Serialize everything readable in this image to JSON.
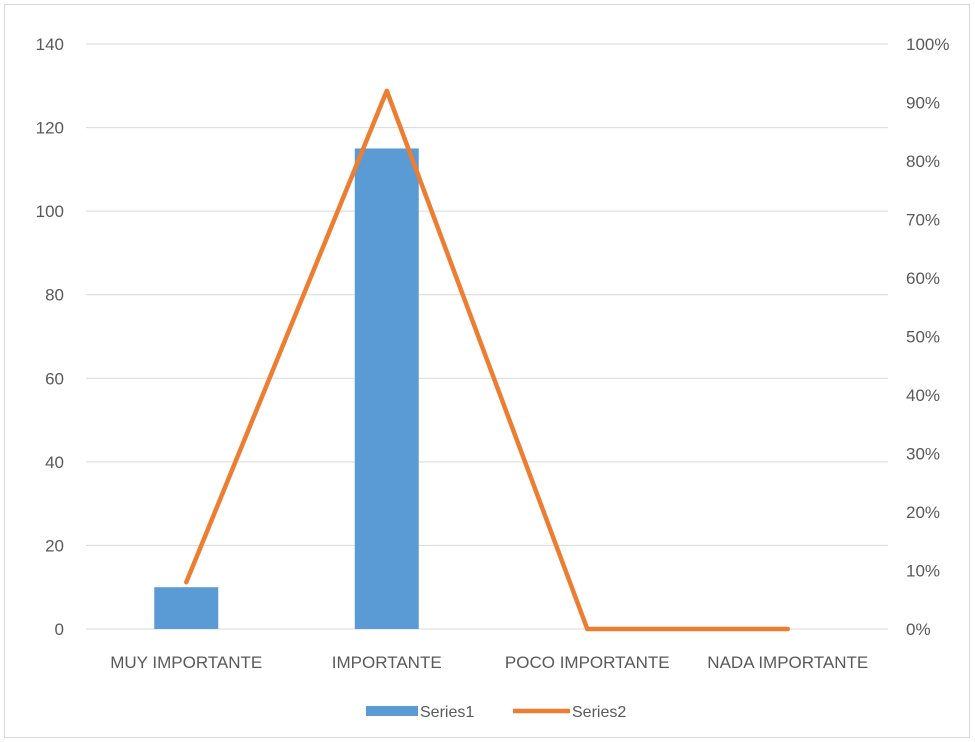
{
  "chart_data": {
    "type": "bar",
    "categories": [
      "MUY IMPORTANTE",
      "IMPORTANTE",
      "POCO IMPORTANTE",
      "NADA IMPORTANTE"
    ],
    "series": [
      {
        "name": "Series1",
        "type": "bar",
        "axis": "left",
        "color": "#5b9bd5",
        "values": [
          10,
          115,
          0,
          0
        ]
      },
      {
        "name": "Series2",
        "type": "line",
        "axis": "right",
        "color": "#ed7d31",
        "values": [
          0.08,
          0.92,
          0,
          0
        ]
      }
    ],
    "y_left": {
      "min": 0,
      "max": 140,
      "step": 20,
      "ticks": [
        "0",
        "20",
        "40",
        "60",
        "80",
        "100",
        "120",
        "140"
      ]
    },
    "y_right": {
      "min": 0,
      "max": 1,
      "step": 0.1,
      "ticks": [
        "0%",
        "10%",
        "20%",
        "30%",
        "40%",
        "50%",
        "60%",
        "70%",
        "80%",
        "90%",
        "100%"
      ]
    },
    "title": "",
    "xlabel": "",
    "ylabel": "",
    "grid": true,
    "legend_position": "bottom"
  }
}
